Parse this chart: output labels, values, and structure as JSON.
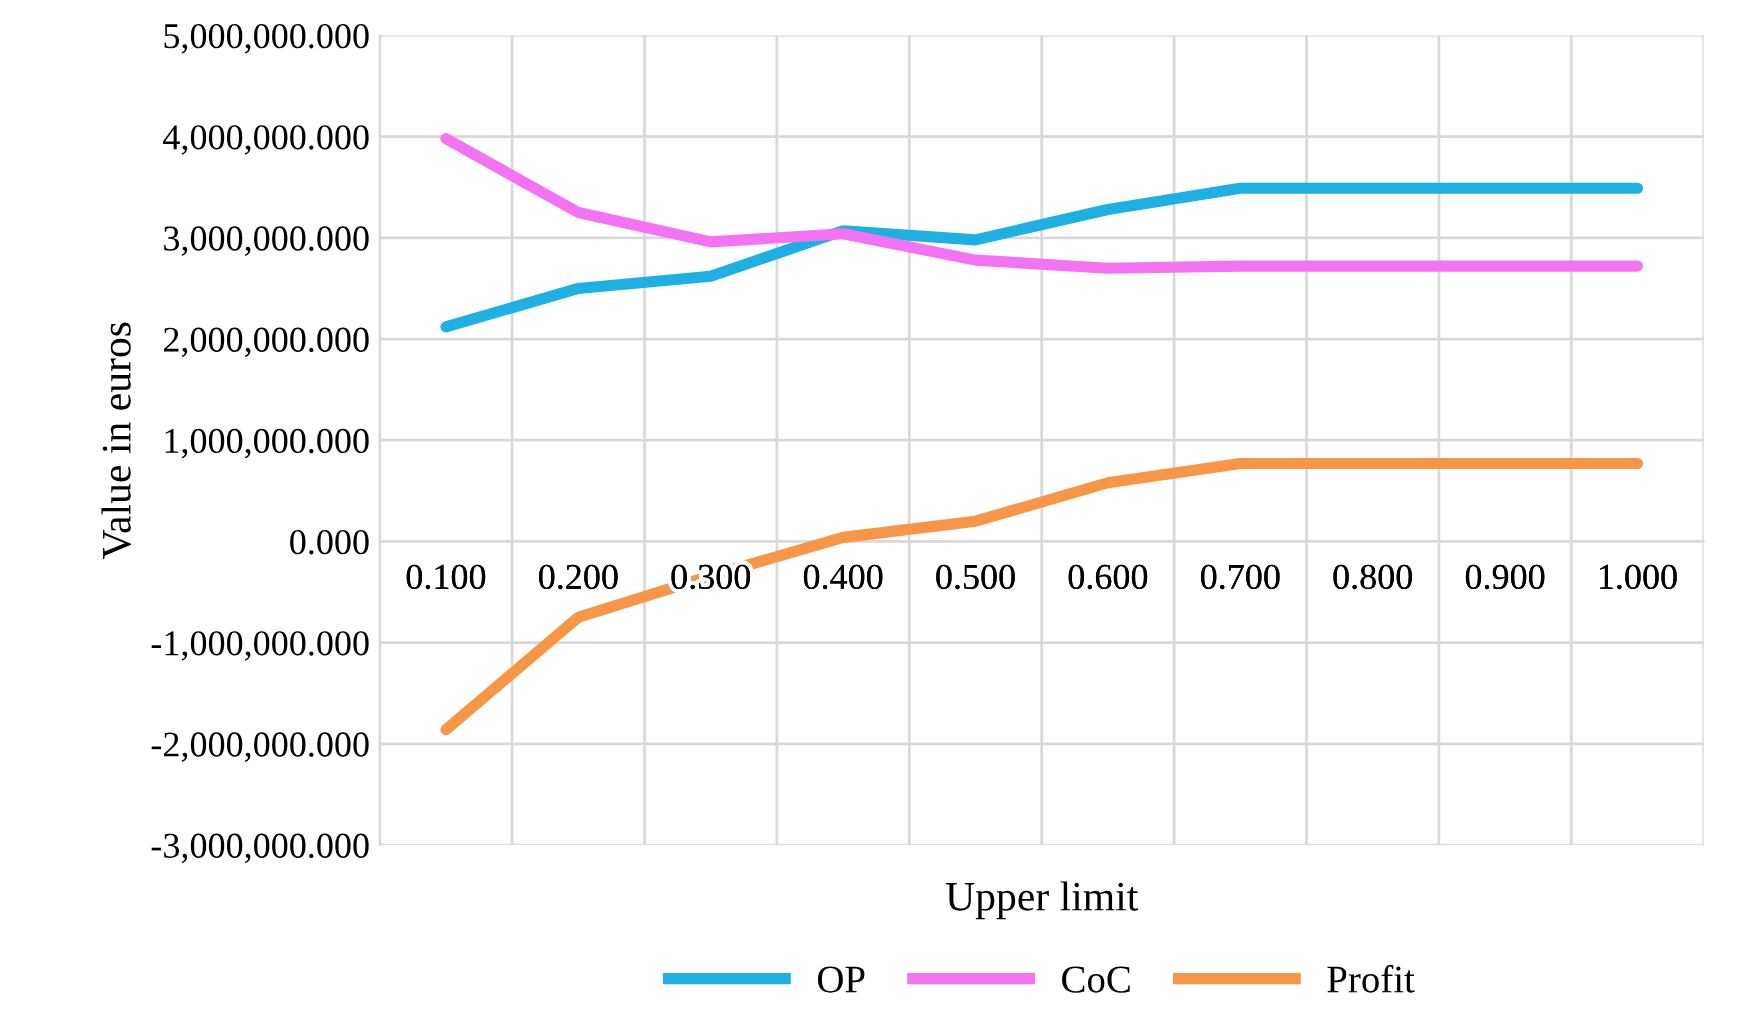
{
  "chart_data": {
    "type": "line",
    "xlabel": "Upper limit",
    "ylabel": "Value in euros",
    "categories": [
      "0.100",
      "0.200",
      "0.300",
      "0.400",
      "0.500",
      "0.600",
      "0.700",
      "0.800",
      "0.900",
      "1.000"
    ],
    "series": [
      {
        "name": "OP",
        "color": "#1fb0e3",
        "values": [
          2120000,
          2500000,
          2620000,
          3070000,
          2980000,
          3280000,
          3490000,
          3490000,
          3490000,
          3490000
        ]
      },
      {
        "name": "CoC",
        "color": "#f373f3",
        "values": [
          3980000,
          3250000,
          2960000,
          3040000,
          2780000,
          2700000,
          2720000,
          2720000,
          2720000,
          2720000
        ]
      },
      {
        "name": "Profit",
        "color": "#f79646",
        "values": [
          -1860000,
          -750000,
          -340000,
          40000,
          200000,
          580000,
          770000,
          770000,
          770000,
          770000
        ]
      }
    ],
    "ylim": [
      -3000000,
      5000000
    ],
    "yticks": [
      {
        "value": -3000000,
        "label": "-3,000,000.000"
      },
      {
        "value": -2000000,
        "label": "-2,000,000.000"
      },
      {
        "value": -1000000,
        "label": "-1,000,000.000"
      },
      {
        "value": 0,
        "label": "0.000"
      },
      {
        "value": 1000000,
        "label": "1,000,000.000"
      },
      {
        "value": 2000000,
        "label": "2,000,000.000"
      },
      {
        "value": 3000000,
        "label": "3,000,000.000"
      },
      {
        "value": 4000000,
        "label": "4,000,000.000"
      },
      {
        "value": 5000000,
        "label": "5,000,000.000"
      }
    ],
    "grid": true,
    "legend": "bottom",
    "marker": "none",
    "line_style": "solid"
  }
}
